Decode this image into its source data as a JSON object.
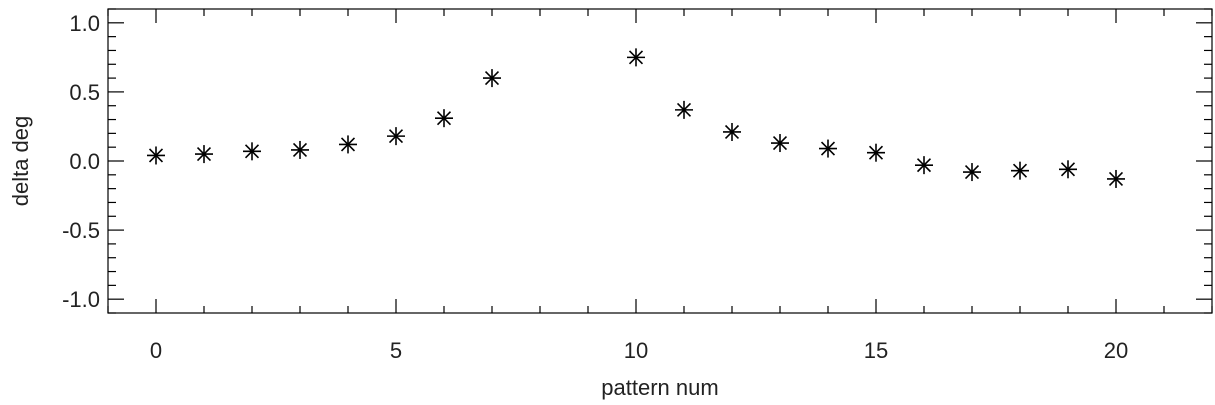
{
  "chart_data": {
    "type": "scatter",
    "title": "",
    "xlabel": "pattern num",
    "ylabel": "delta deg",
    "xlim": [
      -1,
      22
    ],
    "ylim": [
      -1.1,
      1.1
    ],
    "x_ticks": [
      0,
      5,
      10,
      15,
      20
    ],
    "y_ticks": [
      -1.0,
      -0.5,
      0.0,
      0.5,
      1.0
    ],
    "x_tick_labels": [
      "0",
      "5",
      "10",
      "15",
      "20"
    ],
    "y_tick_labels": [
      "-1.0",
      "-0.5",
      "0.0",
      "0.5",
      "1.0"
    ],
    "x_minor_step": 1,
    "y_minor_step": 0.1,
    "marker": "asterisk",
    "marker_color": "#000000",
    "grid": false,
    "series": [
      {
        "x": [
          0,
          1,
          2,
          3,
          4,
          5,
          6,
          7,
          10,
          11,
          12,
          13,
          14,
          15,
          16,
          17,
          18,
          19,
          20
        ],
        "y": [
          0.04,
          0.05,
          0.07,
          0.08,
          0.12,
          0.18,
          0.31,
          0.6,
          0.75,
          0.37,
          0.21,
          0.13,
          0.09,
          0.06,
          -0.03,
          -0.08,
          -0.07,
          -0.06,
          -0.13
        ]
      }
    ]
  }
}
